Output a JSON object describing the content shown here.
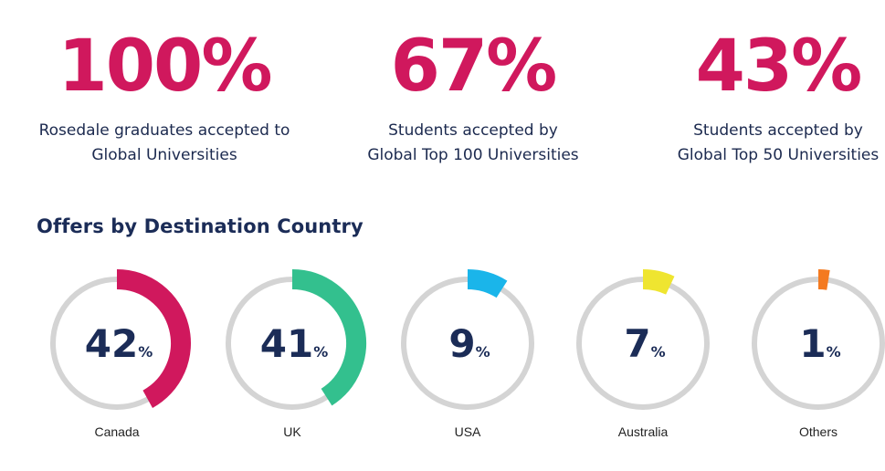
{
  "stats": [
    {
      "value": "100%",
      "line1": "Rosedale graduates accepted to",
      "line2": "Global Universities"
    },
    {
      "value": "67%",
      "line1": "Students accepted by",
      "line2": "Global Top 100 Universities"
    },
    {
      "value": "43%",
      "line1": "Students accepted by",
      "line2": "Global Top 50 Universities"
    }
  ],
  "section_title": "Offers by Destination Country",
  "colors": {
    "accent": "#d0185d",
    "text_dark": "#1b2c57",
    "track": "#d4d4d4",
    "Canada": "#d0185d",
    "UK": "#33c08e",
    "USA": "#1ab5ea",
    "Australia": "#efe530",
    "Others": "#f47a20"
  },
  "chart_data": {
    "type": "pie",
    "title": "Offers by Destination Country",
    "categories": [
      "Canada",
      "UK",
      "USA",
      "Australia",
      "Others"
    ],
    "values": [
      42,
      41,
      9,
      7,
      1
    ],
    "value_labels": [
      "42",
      "41",
      "9",
      "7",
      "1"
    ],
    "unit": "%",
    "style": "separate donut gauges, one per category, clockwise from top"
  }
}
